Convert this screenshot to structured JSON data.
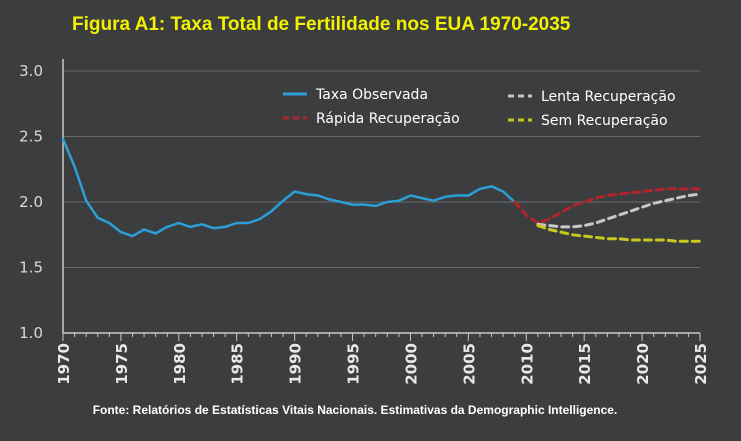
{
  "colors": {
    "background": "#3c3d3f",
    "title": "#f2f200",
    "axis": "#c8c8c8",
    "grid": "#6a6b6d",
    "text": "#ffffff"
  },
  "chart_data": {
    "type": "line",
    "title": "Figura A1: Taxa Total de Fertilidade nos EUA 1970-2035",
    "xlabel": "",
    "ylabel": "",
    "xlim": [
      1970,
      2025
    ],
    "ylim": [
      1.0,
      3.0
    ],
    "yticks": [
      "1.0",
      "1.5",
      "2.0",
      "2.5",
      "3.0"
    ],
    "xticks": [
      "1970",
      "1975",
      "1980",
      "1985",
      "1990",
      "1995",
      "2000",
      "2005",
      "2010",
      "2015",
      "2020",
      "2025"
    ],
    "grid": "horizontal",
    "legend_position": "top-right",
    "series": [
      {
        "name": "Taxa Observada",
        "color": "#2c9fd6",
        "style": "solid",
        "x": [
          1970,
          1971,
          1972,
          1973,
          1974,
          1975,
          1976,
          1977,
          1978,
          1979,
          1980,
          1981,
          1982,
          1983,
          1984,
          1985,
          1986,
          1987,
          1988,
          1989,
          1990,
          1991,
          1992,
          1993,
          1994,
          1995,
          1996,
          1997,
          1998,
          1999,
          2000,
          2001,
          2002,
          2003,
          2004,
          2005,
          2006,
          2007,
          2008,
          2009
        ],
        "y": [
          2.48,
          2.27,
          2.01,
          1.88,
          1.84,
          1.77,
          1.74,
          1.79,
          1.76,
          1.81,
          1.84,
          1.81,
          1.83,
          1.8,
          1.81,
          1.84,
          1.84,
          1.87,
          1.93,
          2.01,
          2.08,
          2.06,
          2.05,
          2.02,
          2.0,
          1.98,
          1.98,
          1.97,
          2.0,
          2.01,
          2.05,
          2.03,
          2.01,
          2.04,
          2.05,
          2.05,
          2.1,
          2.12,
          2.08,
          2.0
        ]
      },
      {
        "name": "Rápida Recuperação",
        "color": "#b0242e",
        "style": "dashed",
        "x": [
          2009,
          2010,
          2011,
          2012,
          2013,
          2014,
          2015,
          2016,
          2017,
          2018,
          2019,
          2020,
          2021,
          2022,
          2023,
          2024,
          2025
        ],
        "y": [
          2.0,
          1.9,
          1.84,
          1.87,
          1.92,
          1.97,
          2.0,
          2.03,
          2.05,
          2.06,
          2.07,
          2.08,
          2.09,
          2.1,
          2.1,
          2.1,
          2.1
        ]
      },
      {
        "name": "Lenta Recuperação",
        "color": "#c8c8c8",
        "style": "dashed",
        "x": [
          2011,
          2012,
          2013,
          2014,
          2015,
          2016,
          2017,
          2018,
          2019,
          2020,
          2021,
          2022,
          2023,
          2024,
          2025
        ],
        "y": [
          1.83,
          1.82,
          1.81,
          1.81,
          1.82,
          1.84,
          1.87,
          1.9,
          1.93,
          1.96,
          1.99,
          2.01,
          2.03,
          2.05,
          2.06
        ]
      },
      {
        "name": "Sem Recuperação",
        "color": "#c8c81e",
        "style": "dashed",
        "x": [
          2011,
          2012,
          2013,
          2014,
          2015,
          2016,
          2017,
          2018,
          2019,
          2020,
          2021,
          2022,
          2023,
          2024,
          2025
        ],
        "y": [
          1.82,
          1.79,
          1.77,
          1.75,
          1.74,
          1.73,
          1.72,
          1.72,
          1.71,
          1.71,
          1.71,
          1.71,
          1.7,
          1.7,
          1.7
        ]
      }
    ],
    "source": "Fonte: Relatórios de Estatísticas Vitais Nacionais. Estimativas da Demographic Intelligence."
  }
}
